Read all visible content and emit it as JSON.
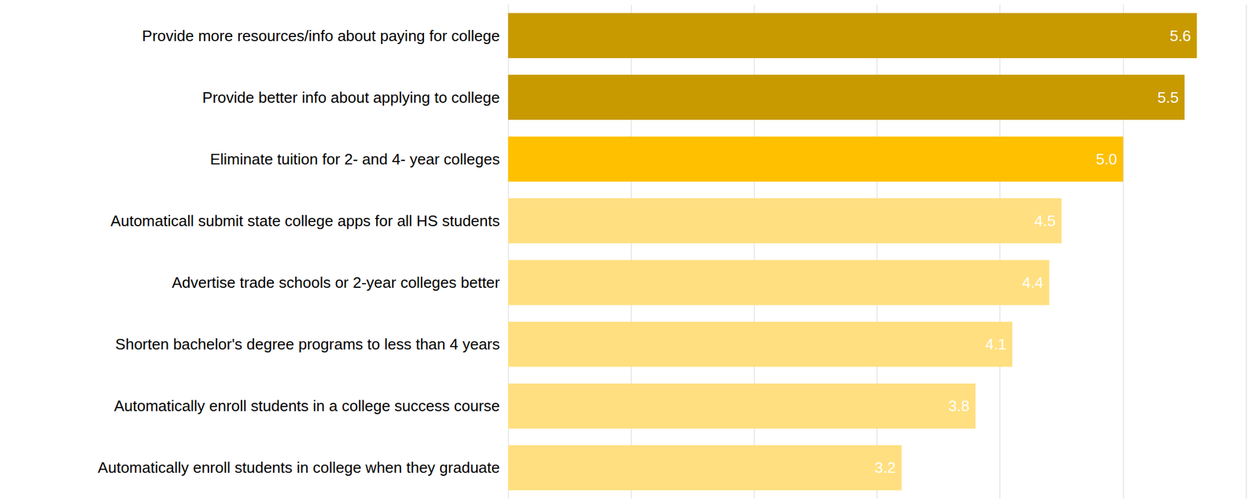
{
  "chart_data": {
    "type": "bar",
    "orientation": "horizontal",
    "categories": [
      "Provide more resources/info about paying for college",
      "Provide better info about applying to college",
      "Eliminate tuition for 2- and 4- year colleges",
      "Automaticall submit state college apps for all HS students",
      "Advertise trade schools or 2-year colleges better",
      "Shorten bachelor's degree programs to less than 4 years",
      "Automatically enroll students in a college success course",
      "Automatically enroll students in college when they graduate"
    ],
    "values": [
      5.6,
      5.5,
      5.0,
      4.5,
      4.4,
      4.1,
      3.8,
      3.2
    ],
    "value_labels": [
      "5.6",
      "5.5",
      "5.0",
      "4.5",
      "4.4",
      "4.1",
      "3.8",
      "3.2"
    ],
    "colors": [
      "#c89a00",
      "#c89a00",
      "#ffc000",
      "#ffdf80",
      "#ffdf80",
      "#ffdf80",
      "#ffdf80",
      "#ffdf80"
    ],
    "xlim": [
      0,
      6
    ],
    "xticks": [
      0,
      1,
      2,
      3,
      4,
      5,
      6
    ],
    "grid": true,
    "data_labels": true,
    "tick_labels": "y"
  }
}
